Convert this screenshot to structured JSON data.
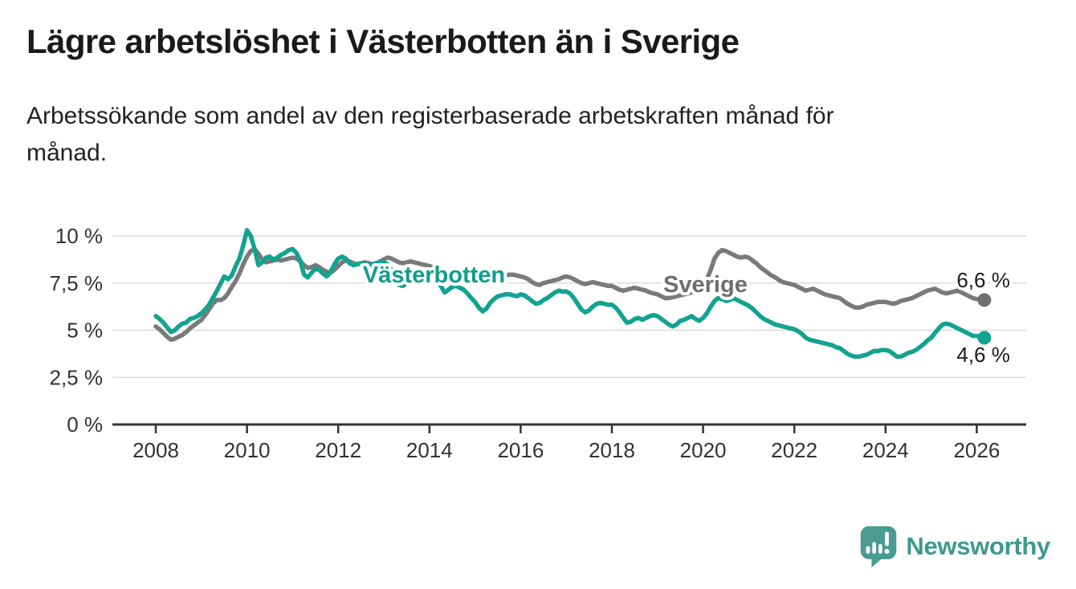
{
  "header": {
    "title": "Lägre arbetslöshet i Västerbotten än i Sverige",
    "subtitle": "Arbetssökande som andel av den registerbaserade arbetskraften månad för\nmånad."
  },
  "chart_data": {
    "type": "line",
    "unit": "%",
    "grid": "horizontal",
    "x_start_year": 2008,
    "x_frequency": "monthly",
    "x_end": "2026-03",
    "x_ticks": [
      2008,
      2010,
      2012,
      2014,
      2016,
      2018,
      2020,
      2022,
      2024,
      2026
    ],
    "y_ticks": [
      {
        "value": 0,
        "label": "0 %"
      },
      {
        "value": 2.5,
        "label": "2,5 %"
      },
      {
        "value": 5,
        "label": "5 %"
      },
      {
        "value": 7.5,
        "label": "7,5 %"
      },
      {
        "value": 10,
        "label": "10 %"
      }
    ],
    "ylim": [
      0,
      10.6
    ],
    "axis_color": "#333333",
    "grid_color": "#dcdcdc",
    "tick_text_color": "#333333",
    "value_label_color": "#1b1b1b",
    "series": [
      {
        "name": "Sverige",
        "color": "#7a7a7a",
        "label_color": "#6e6e6e",
        "dot_color": "#6f6f6f",
        "end_label": {
          "text": "6,6 %",
          "placement": "above"
        },
        "label_pos": {
          "year": 2020.05,
          "value": 7.45
        },
        "values": [
          5.2,
          5.05,
          4.85,
          4.65,
          4.5,
          4.55,
          4.65,
          4.75,
          4.9,
          5.1,
          5.25,
          5.4,
          5.55,
          5.8,
          6.1,
          6.4,
          6.6,
          6.6,
          6.7,
          6.95,
          7.3,
          7.6,
          8.0,
          8.5,
          8.9,
          9.2,
          9.3,
          9.05,
          8.75,
          8.6,
          8.65,
          8.7,
          8.75,
          8.7,
          8.75,
          8.8,
          8.85,
          8.8,
          8.65,
          8.45,
          8.3,
          8.35,
          8.45,
          8.35,
          8.2,
          8.1,
          8.05,
          8.2,
          8.4,
          8.6,
          8.7,
          8.65,
          8.55,
          8.5,
          8.55,
          8.6,
          8.55,
          8.5,
          8.55,
          8.65,
          8.75,
          8.85,
          8.8,
          8.7,
          8.6,
          8.55,
          8.6,
          8.65,
          8.6,
          8.55,
          8.5,
          8.45,
          8.4,
          8.35,
          8.25,
          8.15,
          8.05,
          8.0,
          8.05,
          8.1,
          8.05,
          8.0,
          7.95,
          7.9,
          7.95,
          7.95,
          7.9,
          7.85,
          7.8,
          7.75,
          7.8,
          7.85,
          7.9,
          7.95,
          7.95,
          7.9,
          7.85,
          7.8,
          7.7,
          7.55,
          7.45,
          7.4,
          7.5,
          7.55,
          7.6,
          7.65,
          7.7,
          7.8,
          7.85,
          7.8,
          7.7,
          7.6,
          7.5,
          7.45,
          7.5,
          7.55,
          7.5,
          7.45,
          7.4,
          7.35,
          7.35,
          7.25,
          7.15,
          7.1,
          7.15,
          7.2,
          7.25,
          7.2,
          7.15,
          7.1,
          7.0,
          6.95,
          6.9,
          6.8,
          6.7,
          6.7,
          6.75,
          6.8,
          6.85,
          6.9,
          6.95,
          7.0,
          7.1,
          7.2,
          7.4,
          7.7,
          8.2,
          8.8,
          9.1,
          9.25,
          9.2,
          9.1,
          9.0,
          8.9,
          8.85,
          8.9,
          8.85,
          8.7,
          8.55,
          8.35,
          8.2,
          8.05,
          7.9,
          7.8,
          7.65,
          7.55,
          7.5,
          7.45,
          7.4,
          7.3,
          7.2,
          7.1,
          7.15,
          7.2,
          7.1,
          7.0,
          6.9,
          6.85,
          6.8,
          6.75,
          6.7,
          6.55,
          6.4,
          6.3,
          6.2,
          6.2,
          6.25,
          6.35,
          6.4,
          6.45,
          6.5,
          6.5,
          6.5,
          6.45,
          6.4,
          6.45,
          6.55,
          6.6,
          6.65,
          6.7,
          6.8,
          6.9,
          7.0,
          7.1,
          7.15,
          7.2,
          7.1,
          7.0,
          6.95,
          7.0,
          7.05,
          7.1,
          7.0,
          6.9,
          6.8,
          6.7,
          6.65,
          6.6,
          6.6
        ]
      },
      {
        "name": "Västerbotten",
        "color": "#12a391",
        "label_color": "#0f9e8c",
        "dot_color": "#12a391",
        "end_label": {
          "text": "4,6 %",
          "placement": "below"
        },
        "label_pos": {
          "year": 2014.1,
          "value": 7.95
        },
        "values": [
          5.75,
          5.6,
          5.4,
          5.15,
          4.9,
          5.0,
          5.2,
          5.35,
          5.4,
          5.6,
          5.65,
          5.75,
          5.9,
          6.1,
          6.35,
          6.7,
          7.05,
          7.45,
          7.85,
          7.7,
          7.9,
          8.4,
          8.8,
          9.5,
          10.3,
          10.0,
          9.3,
          8.45,
          8.6,
          8.85,
          8.9,
          8.75,
          8.85,
          9.0,
          9.1,
          9.25,
          9.3,
          9.1,
          8.7,
          7.95,
          7.8,
          8.05,
          8.25,
          8.2,
          8.0,
          7.85,
          8.1,
          8.5,
          8.8,
          8.9,
          8.8,
          8.55,
          8.45,
          8.5,
          8.55,
          8.5,
          8.45,
          8.5,
          8.55,
          8.6,
          8.6,
          8.5,
          8.2,
          7.8,
          7.4,
          7.35,
          7.5,
          7.6,
          7.7,
          7.75,
          7.8,
          7.85,
          7.8,
          7.7,
          7.55,
          7.35,
          7.0,
          7.15,
          7.3,
          7.35,
          7.25,
          7.15,
          6.95,
          6.7,
          6.5,
          6.2,
          6.0,
          6.15,
          6.45,
          6.65,
          6.8,
          6.85,
          6.9,
          6.9,
          6.85,
          6.8,
          6.9,
          6.85,
          6.7,
          6.55,
          6.4,
          6.45,
          6.6,
          6.7,
          6.85,
          7.0,
          7.1,
          7.05,
          7.05,
          6.95,
          6.7,
          6.4,
          6.1,
          5.95,
          6.05,
          6.25,
          6.4,
          6.45,
          6.4,
          6.35,
          6.35,
          6.2,
          5.95,
          5.65,
          5.4,
          5.45,
          5.6,
          5.65,
          5.55,
          5.65,
          5.75,
          5.8,
          5.75,
          5.6,
          5.45,
          5.3,
          5.2,
          5.3,
          5.5,
          5.55,
          5.65,
          5.75,
          5.6,
          5.5,
          5.65,
          5.9,
          6.25,
          6.55,
          6.7,
          6.65,
          6.55,
          6.6,
          6.7,
          6.6,
          6.5,
          6.4,
          6.3,
          6.15,
          5.95,
          5.75,
          5.6,
          5.5,
          5.4,
          5.3,
          5.25,
          5.2,
          5.15,
          5.1,
          5.05,
          4.95,
          4.8,
          4.6,
          4.5,
          4.45,
          4.4,
          4.35,
          4.3,
          4.25,
          4.2,
          4.1,
          4.05,
          3.9,
          3.75,
          3.65,
          3.6,
          3.6,
          3.65,
          3.7,
          3.8,
          3.9,
          3.9,
          3.95,
          3.95,
          3.9,
          3.75,
          3.6,
          3.6,
          3.7,
          3.8,
          3.85,
          3.95,
          4.1,
          4.25,
          4.45,
          4.6,
          4.85,
          5.1,
          5.3,
          5.35,
          5.3,
          5.2,
          5.1,
          5.0,
          4.9,
          4.8,
          4.7,
          4.7,
          4.65,
          4.6
        ]
      }
    ]
  },
  "footer": {
    "brand": "Newsworthy",
    "brand_color": "#3E998F",
    "logo_color": "#4A9C92"
  }
}
